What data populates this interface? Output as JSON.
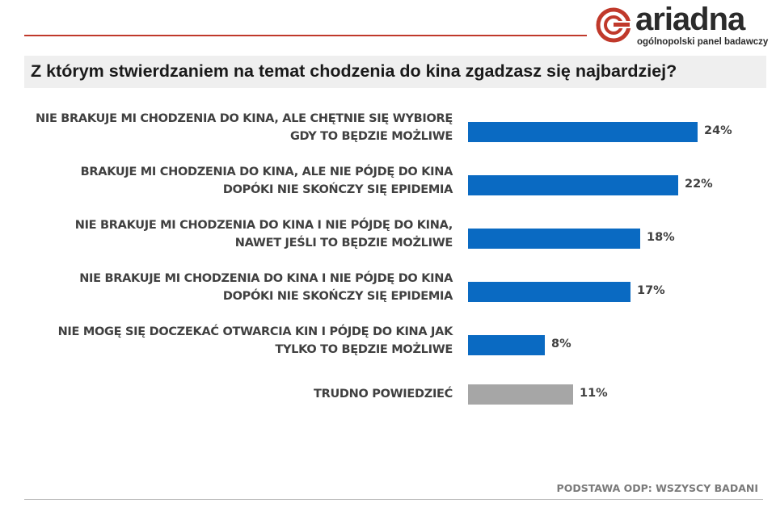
{
  "brand": {
    "name": "ariadna",
    "tagline": "ogólnopolski panel badawczy",
    "accent_color": "#c0392b",
    "dark_color": "#2b2b2b"
  },
  "question": "Z którym stwierdzaniem na temat chodzenia do kina zgadzasz się najbardziej?",
  "footnote": "PODSTAWA ODP: WSZYSCY BADANI",
  "colors": {
    "bar_primary": "#0a6ac2",
    "bar_neutral": "#a6a6a6",
    "label": "#404040"
  },
  "chart_data": {
    "type": "bar",
    "orientation": "horizontal",
    "categories": [
      [
        "NIE BRAKUJE MI CHODZENIA DO KINA, ALE CHĘTNIE SIĘ WYBIORĘ",
        "GDY TO BĘDZIE MOŻLIWE"
      ],
      [
        "BRAKUJE MI CHODZENIA DO KINA, ALE NIE PÓJDĘ DO KINA",
        "DOPÓKI NIE SKOŃCZY SIĘ EPIDEMIA"
      ],
      [
        "NIE BRAKUJE MI CHODZENIA DO KINA I NIE PÓJDĘ DO KINA,",
        "NAWET JEŚLI TO BĘDZIE MOŻLIWE"
      ],
      [
        "NIE BRAKUJE MI CHODZENIA DO KINA I NIE PÓJDĘ DO KINA",
        "DOPÓKI NIE SKOŃCZY SIĘ EPIDEMIA"
      ],
      [
        "NIE MOGĘ SIĘ DOCZEKAĆ OTWARCIA KIN I PÓJDĘ DO KINA JAK",
        "TYLKO TO BĘDZIE MOŻLIWE"
      ],
      [
        "TRUDNO POWIEDZIEĆ"
      ]
    ],
    "values": [
      24,
      22,
      18,
      17,
      8,
      11
    ],
    "value_labels": [
      "24%",
      "22%",
      "18%",
      "17%",
      "8%",
      "11%"
    ],
    "bar_colors": [
      "#0a6ac2",
      "#0a6ac2",
      "#0a6ac2",
      "#0a6ac2",
      "#0a6ac2",
      "#a6a6a6"
    ],
    "xlim": [
      0,
      24
    ],
    "grid": false,
    "legend": "none"
  }
}
